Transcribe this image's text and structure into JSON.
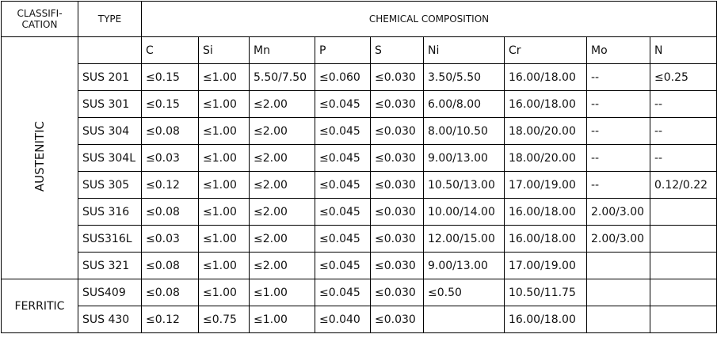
{
  "header": {
    "classification": [
      "CLASSIFI-",
      "CATION"
    ],
    "type": "TYPE",
    "composition": "CHEMICAL COMPOSITION"
  },
  "columns": [
    "C",
    "Si",
    "Mn",
    "P",
    "S",
    "Ni",
    "Cr",
    "Mo",
    "N"
  ],
  "groups": [
    {
      "classification": "AUSTENITIC",
      "rows": [
        {
          "type": "SUS 201",
          "values": [
            "≤0.15",
            "≤1.00",
            "5.50/7.50",
            "≤0.060",
            "≤0.030",
            "3.50/5.50",
            "16.00/18.00",
            "--",
            "≤0.25"
          ]
        },
        {
          "type": "SUS 301",
          "values": [
            "≤0.15",
            "≤1.00",
            "≤2.00",
            "≤0.045",
            "≤0.030",
            "6.00/8.00",
            "16.00/18.00",
            "--",
            "--"
          ]
        },
        {
          "type": "SUS 304",
          "values": [
            "≤0.08",
            "≤1.00",
            "≤2.00",
            "≤0.045",
            "≤0.030",
            "8.00/10.50",
            "18.00/20.00",
            "--",
            "--"
          ]
        },
        {
          "type": "SUS 304L",
          "values": [
            "≤0.03",
            "≤1.00",
            "≤2.00",
            "≤0.045",
            "≤0.030",
            "9.00/13.00",
            "18.00/20.00",
            "--",
            "--"
          ]
        },
        {
          "type": "SUS 305",
          "values": [
            "≤0.12",
            "≤1.00",
            "≤2.00",
            "≤0.045",
            "≤0.030",
            "10.50/13.00",
            "17.00/19.00",
            "--",
            "0.12/0.22"
          ]
        },
        {
          "type": "SUS 316",
          "values": [
            "≤0.08",
            "≤1.00",
            "≤2.00",
            "≤0.045",
            "≤0.030",
            "10.00/14.00",
            "16.00/18.00",
            "2.00/3.00",
            null
          ]
        },
        {
          "type": "SUS316L",
          "values": [
            "≤0.03",
            "≤1.00",
            "≤2.00",
            "≤0.045",
            "≤0.030",
            "12.00/15.00",
            "16.00/18.00",
            "2.00/3.00",
            null
          ]
        },
        {
          "type": "SUS 321",
          "values": [
            "≤0.08",
            "≤1.00",
            "≤2.00",
            "≤0.045",
            "≤0.030",
            "9.00/13.00",
            "17.00/19.00",
            null,
            null
          ]
        }
      ]
    },
    {
      "classification": "FERRITIC",
      "rows": [
        {
          "type": "SUS409",
          "values": [
            "≤0.08",
            "≤1.00",
            "≤1.00",
            "≤0.045",
            "≤0.030",
            "≤0.50",
            "10.50/11.75",
            null,
            null
          ]
        },
        {
          "type": "SUS 430",
          "values": [
            "≤0.12",
            "≤0.75",
            "≤1.00",
            "≤0.040",
            "≤0.030",
            null,
            "16.00/18.00",
            null,
            null
          ]
        }
      ]
    }
  ]
}
